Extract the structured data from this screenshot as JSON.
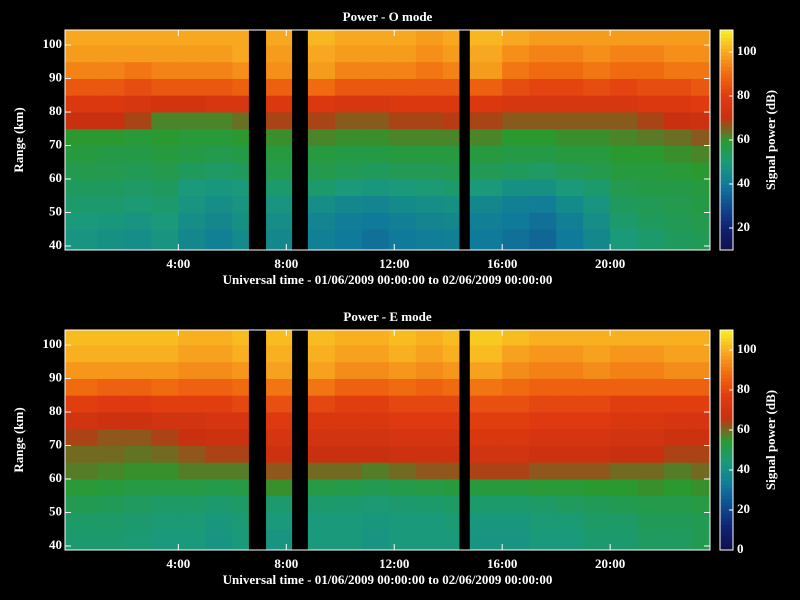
{
  "chart_data": [
    {
      "type": "heatmap",
      "title": "Power - O mode",
      "xlabel": "Universal time - 01/06/2009 00:00:00 to 02/06/2009 00:00:00",
      "ylabel": "Range (km)",
      "colorbar_label": "Signal power (dB)",
      "xlim": [
        -0.2,
        23.7
      ],
      "ylim": [
        38.8,
        104.5
      ],
      "zlim": [
        10,
        110
      ],
      "xticks": [
        {
          "value": 4,
          "label": "4:00"
        },
        {
          "value": 8,
          "label": "8:00"
        },
        {
          "value": 12,
          "label": "12:00"
        },
        {
          "value": 16,
          "label": "16:00"
        },
        {
          "value": 20,
          "label": "20:00"
        }
      ],
      "yticks": [
        40,
        50,
        60,
        70,
        80,
        90,
        100
      ],
      "zticks": [
        20,
        40,
        60,
        80,
        100
      ],
      "colormap": [
        "#10104a",
        "#102070",
        "#104a90",
        "#107a9a",
        "#1a9a7a",
        "#2a9a30",
        "#c83010",
        "#e03a10",
        "#f06a10",
        "#f8a820",
        "#f8f020"
      ],
      "x_bins": [
        -0.2,
        1,
        2,
        3,
        4,
        5,
        6,
        6.6,
        7.25,
        8.2,
        8.8,
        9.8,
        10.8,
        11.8,
        12.8,
        13.8,
        14.4,
        14.8,
        16,
        17,
        18,
        19,
        20,
        21,
        22,
        23,
        23.7
      ],
      "y_bins": [
        38.8,
        45,
        50,
        55,
        60,
        65,
        70,
        75,
        80,
        85,
        90,
        95,
        100,
        104.5
      ],
      "z": [
        [
          48,
          47,
          46,
          48,
          44,
          42,
          45,
          null,
          44,
          null,
          42,
          40,
          38,
          40,
          41,
          42,
          null,
          40,
          38,
          36,
          40,
          44,
          50,
          52,
          54,
          55
        ],
        [
          50,
          49,
          48,
          50,
          46,
          44,
          47,
          null,
          46,
          null,
          43,
          41,
          40,
          42,
          43,
          44,
          null,
          42,
          40,
          38,
          42,
          46,
          52,
          54,
          55,
          56
        ],
        [
          52,
          52,
          51,
          52,
          48,
          46,
          48,
          null,
          48,
          null,
          46,
          44,
          43,
          45,
          46,
          47,
          null,
          44,
          42,
          41,
          45,
          48,
          54,
          55,
          56,
          57
        ],
        [
          54,
          54,
          53,
          54,
          50,
          49,
          50,
          null,
          52,
          null,
          52,
          50,
          49,
          50,
          51,
          52,
          null,
          50,
          47,
          47,
          50,
          52,
          56,
          57,
          57,
          58
        ],
        [
          56,
          56,
          55,
          56,
          54,
          53,
          54,
          null,
          56,
          null,
          56,
          55,
          54,
          55,
          55,
          56,
          null,
          55,
          54,
          53,
          55,
          56,
          58,
          58,
          59,
          60
        ],
        [
          58,
          57,
          57,
          58,
          57,
          56,
          57,
          null,
          58,
          null,
          58,
          57,
          57,
          58,
          58,
          58,
          null,
          58,
          57,
          57,
          58,
          58,
          60,
          60,
          61,
          62
        ],
        [
          60,
          60,
          59,
          60,
          59,
          59,
          60,
          null,
          61,
          null,
          62,
          61,
          61,
          62,
          62,
          62,
          null,
          62,
          60,
          60,
          61,
          61,
          62,
          63,
          64,
          66
        ],
        [
          70,
          70,
          68,
          62,
          62,
          62,
          64,
          null,
          68,
          null,
          68,
          66,
          66,
          68,
          68,
          69,
          null,
          68,
          66,
          66,
          66,
          66,
          66,
          68,
          70,
          72
        ],
        [
          78,
          78,
          76,
          74,
          74,
          76,
          76,
          null,
          78,
          null,
          78,
          76,
          76,
          78,
          78,
          78,
          null,
          78,
          76,
          76,
          76,
          76,
          76,
          78,
          78,
          80
        ],
        [
          86,
          86,
          84,
          86,
          86,
          86,
          88,
          null,
          88,
          null,
          90,
          86,
          86,
          86,
          86,
          86,
          null,
          88,
          84,
          82,
          82,
          84,
          82,
          84,
          84,
          86
        ],
        [
          94,
          94,
          92,
          94,
          94,
          94,
          96,
          null,
          96,
          null,
          98,
          94,
          94,
          94,
          92,
          94,
          null,
          98,
          92,
          90,
          90,
          92,
          90,
          90,
          92,
          92
        ],
        [
          98,
          98,
          98,
          98,
          98,
          98,
          100,
          null,
          98,
          null,
          100,
          98,
          98,
          98,
          96,
          98,
          null,
          100,
          96,
          94,
          94,
          96,
          94,
          94,
          96,
          96
        ],
        [
          100,
          100,
          100,
          100,
          100,
          100,
          100,
          null,
          100,
          null,
          102,
          100,
          100,
          100,
          98,
          100,
          null,
          102,
          100,
          98,
          98,
          98,
          98,
          98,
          98,
          98
        ]
      ]
    },
    {
      "type": "heatmap",
      "title": "Power - E mode",
      "xlabel": "Universal time - 01/06/2009 00:00:00 to 02/06/2009 00:00:00",
      "ylabel": "Range (km)",
      "colorbar_label": "Signal power (dB)",
      "xlim": [
        -0.2,
        23.7
      ],
      "ylim": [
        38.8,
        104.5
      ],
      "zlim": [
        0,
        110
      ],
      "xticks": [
        {
          "value": 4,
          "label": "4:00"
        },
        {
          "value": 8,
          "label": "8:00"
        },
        {
          "value": 12,
          "label": "12:00"
        },
        {
          "value": 16,
          "label": "16:00"
        },
        {
          "value": 20,
          "label": "20:00"
        }
      ],
      "yticks": [
        40,
        50,
        60,
        70,
        80,
        90,
        100
      ],
      "zticks": [
        0,
        20,
        40,
        60,
        80,
        100
      ],
      "colormap": [
        "#10104a",
        "#102070",
        "#104a90",
        "#107a9a",
        "#1a9a7a",
        "#2a9a30",
        "#c83010",
        "#e03a10",
        "#f06a10",
        "#f8a820",
        "#f8f020"
      ],
      "x_bins": [
        -0.2,
        1,
        2,
        3,
        4,
        5,
        6,
        6.6,
        7.25,
        8.2,
        8.8,
        9.8,
        10.8,
        11.8,
        12.8,
        13.8,
        14.4,
        14.8,
        16,
        17,
        18,
        19,
        20,
        21,
        22,
        23,
        23.7
      ],
      "y_bins": [
        38.8,
        45,
        50,
        55,
        60,
        65,
        70,
        75,
        80,
        85,
        90,
        95,
        100,
        104.5
      ],
      "z": [
        [
          46,
          46,
          45,
          44,
          44,
          42,
          44,
          null,
          42,
          null,
          44,
          44,
          42,
          44,
          44,
          44,
          null,
          42,
          42,
          44,
          44,
          46,
          46,
          48,
          48,
          50
        ],
        [
          47,
          47,
          46,
          45,
          45,
          43,
          45,
          null,
          44,
          null,
          44,
          44,
          43,
          44,
          44,
          45,
          null,
          43,
          43,
          45,
          45,
          47,
          47,
          49,
          49,
          50
        ],
        [
          50,
          49,
          48,
          47,
          47,
          46,
          47,
          null,
          46,
          null,
          46,
          46,
          45,
          46,
          46,
          47,
          null,
          46,
          46,
          47,
          48,
          49,
          50,
          51,
          51,
          52
        ],
        [
          54,
          53,
          52,
          52,
          52,
          51,
          52,
          null,
          56,
          null,
          52,
          51,
          50,
          51,
          52,
          53,
          null,
          53,
          53,
          54,
          54,
          55,
          55,
          56,
          55,
          56
        ],
        [
          58,
          57,
          56,
          56,
          58,
          58,
          58,
          null,
          62,
          null,
          60,
          60,
          58,
          60,
          62,
          62,
          null,
          64,
          64,
          62,
          62,
          62,
          60,
          60,
          58,
          60
        ],
        [
          60,
          60,
          59,
          60,
          62,
          64,
          64,
          null,
          68,
          null,
          66,
          66,
          66,
          68,
          68,
          68,
          null,
          70,
          70,
          68,
          68,
          68,
          66,
          66,
          64,
          64
        ],
        [
          64,
          62,
          62,
          64,
          66,
          68,
          68,
          null,
          72,
          null,
          70,
          70,
          70,
          72,
          72,
          72,
          null,
          74,
          74,
          72,
          72,
          72,
          70,
          70,
          68,
          68
        ],
        [
          70,
          68,
          68,
          70,
          70,
          72,
          72,
          null,
          76,
          null,
          74,
          74,
          74,
          76,
          76,
          76,
          null,
          78,
          78,
          76,
          76,
          76,
          74,
          74,
          72,
          72
        ],
        [
          78,
          76,
          76,
          78,
          78,
          78,
          80,
          null,
          82,
          null,
          80,
          78,
          78,
          80,
          80,
          80,
          null,
          82,
          82,
          80,
          80,
          80,
          78,
          78,
          78,
          78
        ],
        [
          88,
          86,
          86,
          88,
          86,
          86,
          88,
          null,
          90,
          null,
          90,
          86,
          86,
          88,
          86,
          88,
          null,
          90,
          88,
          86,
          86,
          86,
          86,
          86,
          86,
          86
        ],
        [
          96,
          96,
          96,
          96,
          94,
          94,
          96,
          null,
          98,
          null,
          98,
          94,
          94,
          96,
          94,
          96,
          null,
          98,
          94,
          92,
          92,
          94,
          92,
          92,
          94,
          94
        ],
        [
          100,
          100,
          100,
          100,
          98,
          98,
          100,
          null,
          100,
          null,
          100,
          98,
          98,
          100,
          98,
          100,
          null,
          102,
          98,
          96,
          96,
          98,
          96,
          96,
          98,
          98
        ],
        [
          102,
          102,
          102,
          102,
          100,
          100,
          102,
          null,
          102,
          null,
          102,
          100,
          100,
          102,
          100,
          102,
          null,
          104,
          102,
          100,
          100,
          100,
          100,
          100,
          100,
          100
        ]
      ]
    }
  ]
}
